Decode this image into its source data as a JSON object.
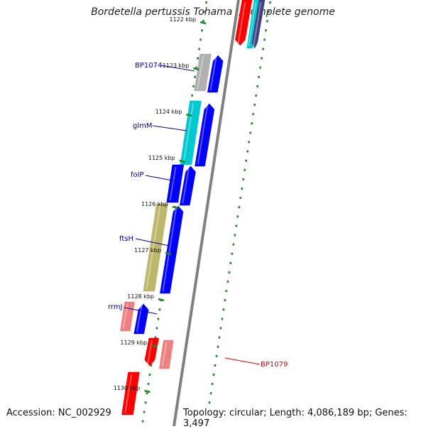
{
  "title": "Bordetella pertussis Tohama I, complete genome",
  "footer": {
    "accession": "Accession: NC_002929",
    "topology": "Topology: circular; Length: 4,086,189 bp; Genes: 3,497"
  },
  "colors": {
    "backbone": "#808080",
    "dots": "#1f8a1f",
    "label_blue": "#0000aa",
    "label_red": "#dd0000",
    "forward_gene": "#0000ff",
    "red_gene": "#ff0000",
    "pink_gene": "#f08080",
    "cyan_gene": "#00c8d0",
    "olive_gene": "#bdb76b",
    "grey_gene": "#b0b0b0"
  },
  "ticks": [
    {
      "label": "1122 kbp"
    },
    {
      "label": "1123 kbp"
    },
    {
      "label": "1124 kbp"
    },
    {
      "label": "1125 kbp"
    },
    {
      "label": "1126 kbp"
    },
    {
      "label": "1127 kbp"
    },
    {
      "label": "1128 kbp"
    },
    {
      "label": "1129 kbp"
    },
    {
      "label": "1130 kbp"
    }
  ],
  "gene_labels": [
    {
      "name": "BP1074",
      "color": "blue"
    },
    {
      "name": "glmM",
      "color": "blue"
    },
    {
      "name": "folP",
      "color": "blue"
    },
    {
      "name": "ftsH",
      "color": "blue"
    },
    {
      "name": "rrmJ",
      "color": "blue"
    },
    {
      "name": "BP1079",
      "color": "red"
    }
  ]
}
